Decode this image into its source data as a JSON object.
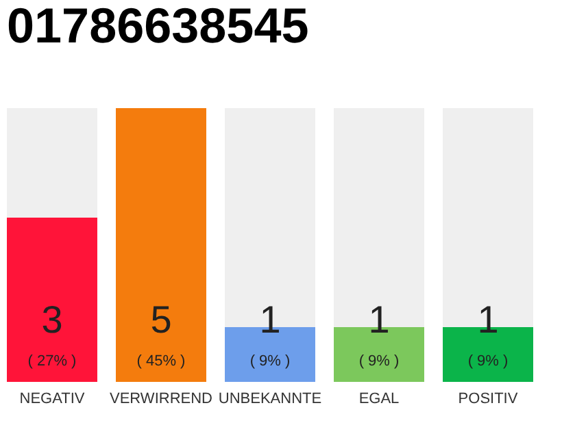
{
  "chart_data": {
    "type": "bar",
    "title": "01786638545",
    "categories": [
      "NEGATIV",
      "VERWIRREND",
      "UNBEKANNTE",
      "EGAL",
      "POSITIV"
    ],
    "values": [
      3,
      5,
      1,
      1,
      1
    ],
    "colors": [
      "#ff1439",
      "#f47c0d",
      "#6d9eeb",
      "#7cc85c",
      "#0bb44a"
    ],
    "data_labels": true,
    "annotations": [
      "( 27% )",
      "( 45% )",
      "( 9% )",
      "( 9% )",
      "( 9% )"
    ],
    "tick_labels": "x",
    "grid": false
  }
}
